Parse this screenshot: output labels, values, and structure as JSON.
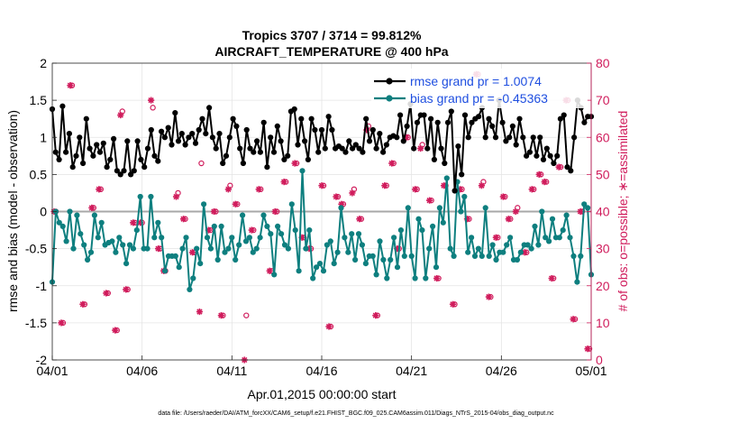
{
  "chart_data": {
    "type": "line",
    "title": "Tropics 3707 / 3714 = 99.812%",
    "subtitle": "AIRCRAFT_TEMPERATURE @ 400 hPa",
    "xlabel": "Apr.01,2015 00:00:00 start",
    "ylabel_left": "rmse and bias (model - observation)",
    "ylabel_right": "# of obs: o=possible; ∗=assimilated",
    "footer": "data file: /Users/raeder/DAI/ATM_forcXX/CAM6_setup/f.e21.FHIST_BGC.f09_025.CAM6assim.011/Diags_NTrS_2015-04/obs_diag_output.nc",
    "x_ticks": [
      "04/01",
      "04/06",
      "04/11",
      "04/16",
      "04/21",
      "04/26",
      "05/01"
    ],
    "x_tick_days": [
      0,
      5,
      10,
      15,
      20,
      25,
      30
    ],
    "xlim": [
      0,
      30
    ],
    "ylim_left": [
      -2,
      2
    ],
    "yticks_left": [
      "2",
      "1.5",
      "1",
      "0.5",
      "0",
      "-0.5",
      "-1",
      "-1.5",
      "-2"
    ],
    "ylim_right": [
      0,
      80
    ],
    "yticks_right": [
      "80",
      "70",
      "60",
      "50",
      "40",
      "30",
      "20",
      "10",
      "0"
    ],
    "zero_line": 0,
    "grid": true,
    "legend_position": "top-right",
    "colors": {
      "rmse": "#000000",
      "bias": "#0e7f7f",
      "obs": "#d01c5c"
    },
    "series": [
      {
        "name": "rmse grand pr = 1.0074",
        "role": "rmse",
        "values": [
          1.38,
          0.8,
          0.7,
          1.42,
          0.8,
          1.05,
          0.6,
          0.75,
          1.0,
          0.65,
          1.25,
          0.85,
          0.75,
          0.9,
          0.8,
          0.92,
          0.6,
          0.7,
          0.98,
          0.55,
          0.5,
          0.55,
          0.95,
          0.5,
          0.55,
          0.95,
          0.7,
          0.6,
          0.85,
          1.1,
          0.75,
          0.68,
          1.08,
          1.0,
          1.13,
          0.9,
          1.33,
          0.95,
          1.05,
          0.9,
          1.0,
          1.05,
          0.92,
          1.1,
          1.25,
          1.05,
          1.4,
          1.0,
          0.85,
          1.05,
          0.65,
          0.75,
          1.0,
          1.25,
          1.15,
          0.85,
          0.65,
          1.1,
          0.85,
          0.8,
          0.95,
          0.8,
          1.2,
          0.6,
          1.0,
          0.8,
          1.15,
          0.95,
          0.7,
          0.75,
          1.35,
          1.38,
          0.9,
          1.25,
          0.95,
          0.7,
          1.25,
          1.1,
          0.8,
          1.1,
          0.85,
          1.28,
          1.1,
          0.85,
          0.88,
          0.85,
          0.8,
          0.95,
          0.85,
          0.9,
          0.85,
          0.8,
          1.25,
          0.95,
          1.1,
          0.85,
          1.05,
          0.8,
          0.9,
          1.0,
          1.02,
          1.0,
          1.3,
          0.95,
          1.15,
          1.45,
          0.85,
          1.2,
          1.3,
          1.3,
          0.85,
          1.25,
          0.7,
          1.2,
          0.85,
          0.65,
          1.2,
          1.35,
          0.28,
          0.88,
          0.5,
          1.3,
          1.0,
          1.2,
          1.25,
          1.28,
          1.4,
          1.0,
          1.25,
          1.15,
          1.0,
          1.5,
          1.2,
          0.95,
          1.0,
          1.15,
          0.9,
          1.25,
          1.0,
          0.75,
          0.8,
          1.0,
          0.75,
          1.0,
          0.7,
          0.85,
          0.75,
          0.65,
          0.75,
          1.25,
          1.3,
          0.6,
          0.55,
          1.0,
          1.5,
          1.4,
          1.2,
          1.28,
          1.28
        ]
      },
      {
        "name": "bias grand pr = -0.45363",
        "role": "bias",
        "values": [
          -0.95,
          0.0,
          -0.15,
          -0.2,
          -0.4,
          0.0,
          -0.5,
          -0.05,
          -0.3,
          -0.45,
          -0.65,
          -0.55,
          -0.05,
          -0.35,
          -0.15,
          -0.45,
          -0.42,
          -0.4,
          -0.55,
          -0.35,
          -0.45,
          -0.7,
          -0.45,
          -0.5,
          -0.25,
          0.2,
          -0.5,
          -0.5,
          0.2,
          -0.35,
          -0.15,
          -0.35,
          -0.8,
          -0.6,
          -0.6,
          -0.6,
          -0.75,
          -0.5,
          -0.35,
          -1.05,
          -0.9,
          -0.5,
          -0.7,
          0.1,
          -0.35,
          -0.5,
          -0.2,
          -0.65,
          -0.2,
          -0.55,
          -0.5,
          -0.35,
          -0.65,
          -0.45,
          -0.05,
          -0.4,
          -0.35,
          -0.55,
          -0.5,
          -0.35,
          -0.05,
          -0.2,
          -0.3,
          -0.85,
          -0.2,
          -0.3,
          -0.45,
          -0.5,
          0.1,
          -0.25,
          -0.8,
          0.55,
          -0.5,
          -0.25,
          -0.9,
          -0.75,
          -0.7,
          -0.8,
          -0.45,
          -0.4,
          -0.7,
          -0.55,
          0.05,
          -0.35,
          -0.55,
          -0.3,
          -0.65,
          -0.3,
          -0.45,
          -0.7,
          -0.6,
          -0.6,
          -0.85,
          -0.4,
          -0.65,
          -0.9,
          -0.65,
          -0.35,
          -0.75,
          -0.25,
          -0.6,
          0.05,
          -0.6,
          -0.9,
          -0.1,
          -0.25,
          -0.9,
          -0.5,
          -0.2,
          -0.75,
          0.05,
          -0.15,
          0.45,
          -0.5,
          -0.6,
          0.4,
          0.0,
          0.2,
          -0.55,
          -0.35,
          -0.6,
          -0.5,
          -0.6,
          0.05,
          -0.6,
          -0.45,
          -0.65,
          -0.55,
          -0.55,
          -0.45,
          -0.35,
          -0.65,
          -0.65,
          -0.55,
          -0.45,
          -0.45,
          -0.5,
          -0.2,
          -0.45,
          0.0,
          -0.35,
          -0.4,
          -0.1,
          -0.35,
          -0.35,
          -0.25,
          -0.05,
          -0.35,
          -0.6,
          -0.95,
          -0.6,
          0.1,
          0.05,
          -0.85
        ]
      }
    ],
    "obs_possible": [
      {
        "day": 0.2,
        "n": 40
      },
      {
        "day": 0.6,
        "n": 10
      },
      {
        "day": 1.1,
        "n": 74
      },
      {
        "day": 1.8,
        "n": 15
      },
      {
        "day": 2.3,
        "n": 41
      },
      {
        "day": 2.7,
        "n": 46
      },
      {
        "day": 3.1,
        "n": 18
      },
      {
        "day": 3.6,
        "n": 8
      },
      {
        "day": 3.9,
        "n": 67
      },
      {
        "day": 4.2,
        "n": 19
      },
      {
        "day": 4.6,
        "n": 37
      },
      {
        "day": 5.0,
        "n": 37
      },
      {
        "day": 5.6,
        "n": 68
      },
      {
        "day": 6.0,
        "n": 30
      },
      {
        "day": 6.3,
        "n": 24
      },
      {
        "day": 7.0,
        "n": 45
      },
      {
        "day": 7.4,
        "n": 38
      },
      {
        "day": 7.9,
        "n": 29
      },
      {
        "day": 8.3,
        "n": 53
      },
      {
        "day": 8.8,
        "n": 35
      },
      {
        "day": 9.1,
        "n": 40
      },
      {
        "day": 9.5,
        "n": 12
      },
      {
        "day": 9.9,
        "n": 47
      },
      {
        "day": 10.3,
        "n": 42
      },
      {
        "day": 10.8,
        "n": 12
      },
      {
        "day": 11.2,
        "n": 35
      },
      {
        "day": 11.6,
        "n": 46
      },
      {
        "day": 12.2,
        "n": 24
      },
      {
        "day": 12.5,
        "n": 40
      },
      {
        "day": 13.0,
        "n": 48
      },
      {
        "day": 13.6,
        "n": 53
      },
      {
        "day": 14.0,
        "n": 33
      },
      {
        "day": 14.4,
        "n": 30
      },
      {
        "day": 15.1,
        "n": 47
      },
      {
        "day": 15.5,
        "n": 9
      },
      {
        "day": 15.9,
        "n": 44
      },
      {
        "day": 16.2,
        "n": 42
      },
      {
        "day": 16.8,
        "n": 46
      },
      {
        "day": 17.2,
        "n": 38
      },
      {
        "day": 17.6,
        "n": 63
      },
      {
        "day": 18.1,
        "n": 12
      },
      {
        "day": 18.6,
        "n": 47
      },
      {
        "day": 19.0,
        "n": 53
      },
      {
        "day": 19.3,
        "n": 30
      },
      {
        "day": 19.8,
        "n": 60
      },
      {
        "day": 20.3,
        "n": 46
      },
      {
        "day": 20.6,
        "n": 58
      },
      {
        "day": 21.1,
        "n": 43
      },
      {
        "day": 21.5,
        "n": 22
      },
      {
        "day": 21.9,
        "n": 47
      },
      {
        "day": 22.4,
        "n": 15
      },
      {
        "day": 22.8,
        "n": 46
      },
      {
        "day": 23.2,
        "n": 38
      },
      {
        "day": 23.7,
        "n": 77
      },
      {
        "day": 24.0,
        "n": 48
      },
      {
        "day": 24.4,
        "n": 17
      },
      {
        "day": 24.8,
        "n": 33
      },
      {
        "day": 25.2,
        "n": 44
      },
      {
        "day": 25.5,
        "n": 38
      },
      {
        "day": 25.9,
        "n": 41
      },
      {
        "day": 26.4,
        "n": 29
      },
      {
        "day": 26.8,
        "n": 46
      },
      {
        "day": 27.2,
        "n": 50
      },
      {
        "day": 27.5,
        "n": 48
      },
      {
        "day": 27.9,
        "n": 22
      },
      {
        "day": 28.3,
        "n": 52
      },
      {
        "day": 28.7,
        "n": 70
      },
      {
        "day": 29.1,
        "n": 11
      },
      {
        "day": 29.5,
        "n": 40
      },
      {
        "day": 29.9,
        "n": 3
      }
    ],
    "obs_assimilated": [
      {
        "day": 0.1,
        "n": 40
      },
      {
        "day": 0.5,
        "n": 10
      },
      {
        "day": 1.0,
        "n": 74
      },
      {
        "day": 1.7,
        "n": 15
      },
      {
        "day": 2.2,
        "n": 41
      },
      {
        "day": 2.6,
        "n": 46
      },
      {
        "day": 3.0,
        "n": 18
      },
      {
        "day": 3.5,
        "n": 8
      },
      {
        "day": 3.8,
        "n": 66
      },
      {
        "day": 4.1,
        "n": 19
      },
      {
        "day": 4.5,
        "n": 37
      },
      {
        "day": 4.9,
        "n": 37
      },
      {
        "day": 5.5,
        "n": 70
      },
      {
        "day": 5.9,
        "n": 30
      },
      {
        "day": 6.2,
        "n": 24
      },
      {
        "day": 6.9,
        "n": 44
      },
      {
        "day": 7.3,
        "n": 38
      },
      {
        "day": 7.8,
        "n": 29
      },
      {
        "day": 8.2,
        "n": 13
      },
      {
        "day": 8.7,
        "n": 35
      },
      {
        "day": 9.0,
        "n": 40
      },
      {
        "day": 9.4,
        "n": 12
      },
      {
        "day": 9.8,
        "n": 46
      },
      {
        "day": 10.2,
        "n": 42
      },
      {
        "day": 10.7,
        "n": 0
      },
      {
        "day": 11.1,
        "n": 35
      },
      {
        "day": 11.5,
        "n": 46
      },
      {
        "day": 12.1,
        "n": 24
      },
      {
        "day": 12.4,
        "n": 40
      },
      {
        "day": 12.9,
        "n": 48
      },
      {
        "day": 13.5,
        "n": 53
      },
      {
        "day": 13.9,
        "n": 33
      },
      {
        "day": 14.3,
        "n": 30
      },
      {
        "day": 15.0,
        "n": 47
      },
      {
        "day": 15.4,
        "n": 9
      },
      {
        "day": 15.8,
        "n": 44
      },
      {
        "day": 16.1,
        "n": 42
      },
      {
        "day": 16.7,
        "n": 45
      },
      {
        "day": 17.1,
        "n": 38
      },
      {
        "day": 17.5,
        "n": 62
      },
      {
        "day": 18.0,
        "n": 12
      },
      {
        "day": 18.5,
        "n": 47
      },
      {
        "day": 18.9,
        "n": 53
      },
      {
        "day": 19.2,
        "n": 30
      },
      {
        "day": 19.7,
        "n": 60
      },
      {
        "day": 20.2,
        "n": 46
      },
      {
        "day": 20.5,
        "n": 57
      },
      {
        "day": 21.0,
        "n": 43
      },
      {
        "day": 21.4,
        "n": 22
      },
      {
        "day": 21.8,
        "n": 47
      },
      {
        "day": 22.3,
        "n": 15
      },
      {
        "day": 22.7,
        "n": 46
      },
      {
        "day": 23.1,
        "n": 38
      },
      {
        "day": 23.6,
        "n": 77
      },
      {
        "day": 23.9,
        "n": 47
      },
      {
        "day": 24.3,
        "n": 17
      },
      {
        "day": 24.7,
        "n": 33
      },
      {
        "day": 25.1,
        "n": 44
      },
      {
        "day": 25.4,
        "n": 38
      },
      {
        "day": 25.8,
        "n": 40
      },
      {
        "day": 26.3,
        "n": 29
      },
      {
        "day": 26.7,
        "n": 46
      },
      {
        "day": 27.1,
        "n": 50
      },
      {
        "day": 27.4,
        "n": 48
      },
      {
        "day": 27.8,
        "n": 22
      },
      {
        "day": 28.2,
        "n": 52
      },
      {
        "day": 28.6,
        "n": 70
      },
      {
        "day": 29.0,
        "n": 11
      },
      {
        "day": 29.4,
        "n": 40
      },
      {
        "day": 29.8,
        "n": 3
      }
    ]
  }
}
